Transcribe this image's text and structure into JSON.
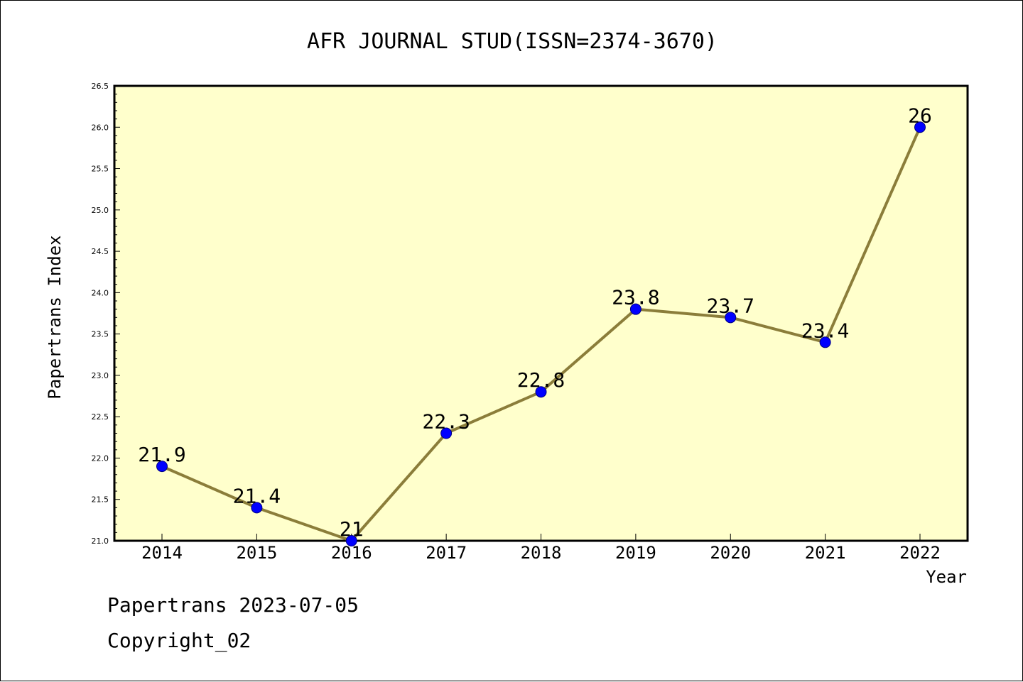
{
  "chart_data": {
    "type": "line",
    "title": "AFR JOURNAL STUD(ISSN=2374-3670)",
    "xlabel": "Year",
    "ylabel": "Papertrans Index",
    "categories": [
      "2014",
      "2015",
      "2016",
      "2017",
      "2018",
      "2019",
      "2020",
      "2021",
      "2022"
    ],
    "series": [
      {
        "values": [
          21.9,
          21.4,
          21.0,
          22.3,
          22.8,
          23.8,
          23.7,
          23.4,
          26.0
        ],
        "labels": [
          "21.9",
          "21.4",
          "21",
          "22.3",
          "22.8",
          "23.8",
          "23.7",
          "23.4",
          "26"
        ]
      }
    ],
    "ylim": [
      21.0,
      26.5
    ],
    "yticks": [
      "21.0",
      "21.5",
      "22.0",
      "22.5",
      "23.0",
      "23.5",
      "24.0",
      "24.5",
      "25.0",
      "25.5",
      "26.0",
      "26.5"
    ],
    "grid": false,
    "colors": {
      "plot_background": "#ffffcc",
      "line": "#8b7d3a",
      "marker": "#0000ff",
      "marker_edge": "#000080"
    }
  },
  "footer": {
    "date_line": "Papertrans 2023-07-05",
    "copyright_line": "Copyright_02"
  }
}
